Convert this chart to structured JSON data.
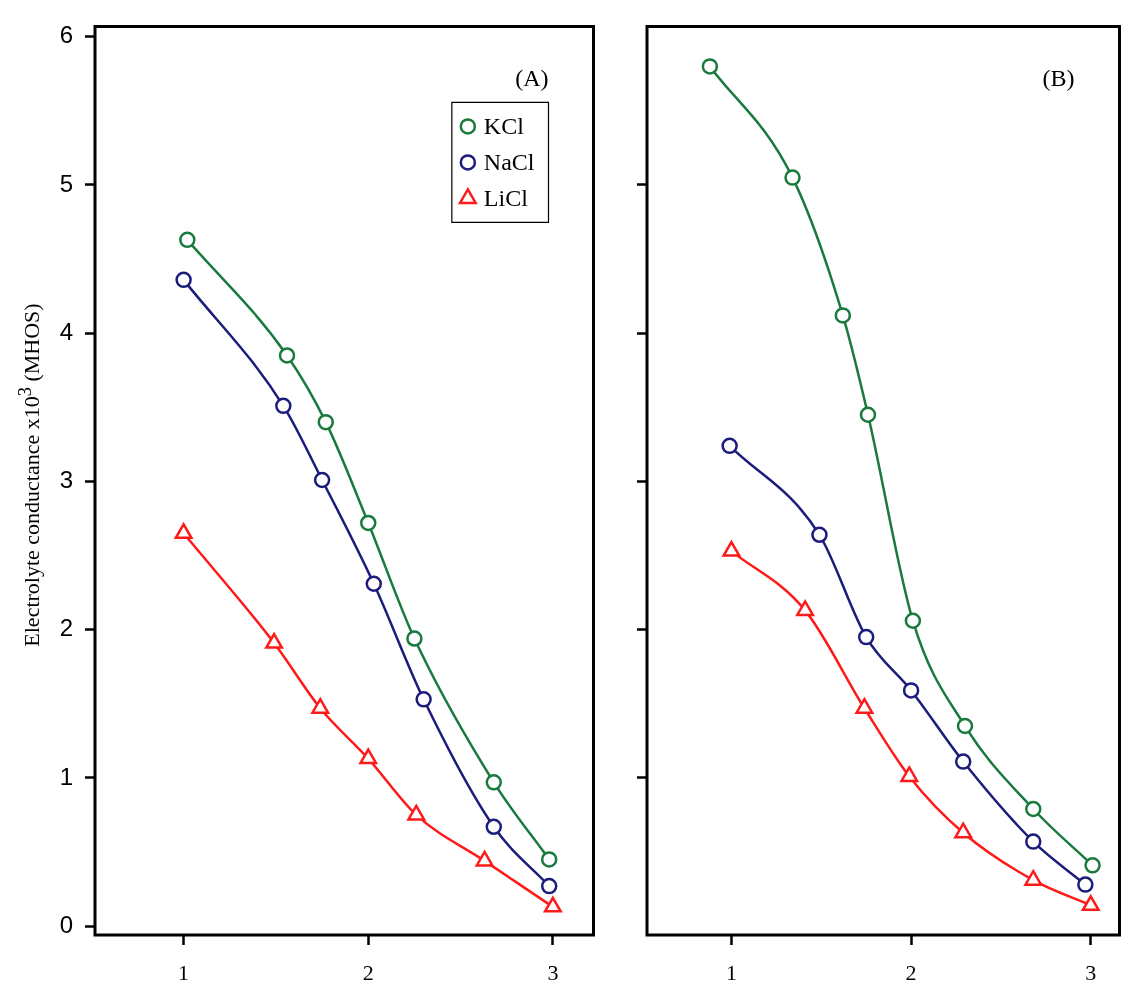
{
  "chart_data": [
    {
      "type": "line",
      "ylabel": "Electrolyte conductance x10$^{3}$ (MHOS)",
      "annotations": [
        "(A)"
      ],
      "legend": "top right",
      "grid": false,
      "xlim": [
        0.52,
        3.22
      ],
      "xticks": [
        1,
        2,
        3
      ],
      "ylim": [
        -0.06,
        6.07
      ],
      "yticks": [
        0,
        1,
        2,
        3,
        4,
        5,
        6
      ],
      "series": [
        {
          "name": "KCl",
          "color": "#1a7a3e",
          "marker": "circle",
          "x": [
            1.02,
            1.56,
            1.77,
            2.0,
            2.25,
            2.68,
            2.98
          ],
          "values": [
            4.63,
            3.85,
            3.4,
            2.72,
            1.94,
            0.97,
            0.45
          ]
        },
        {
          "name": "NaCl",
          "color": "#1c1c7c",
          "marker": "circle",
          "x": [
            1.0,
            1.54,
            1.75,
            2.03,
            2.3,
            2.68,
            2.98
          ],
          "values": [
            4.36,
            3.51,
            3.01,
            2.31,
            1.53,
            0.67,
            0.27
          ]
        },
        {
          "name": "LiCl",
          "color": "#ff1a1a",
          "marker": "triangle",
          "x": [
            1.0,
            1.49,
            1.74,
            2.0,
            2.26,
            2.63,
            3.0
          ],
          "values": [
            2.65,
            1.91,
            1.47,
            1.13,
            0.75,
            0.44,
            0.13
          ]
        }
      ]
    },
    {
      "type": "line",
      "annotations": [
        "(B)"
      ],
      "grid": false,
      "tick_labels": "x",
      "xlim": [
        0.53,
        3.16
      ],
      "xticks": [
        1,
        2,
        3
      ],
      "ylim": [
        -0.06,
        6.07
      ],
      "yticks": [
        1,
        2,
        3,
        4,
        5
      ],
      "series": [
        {
          "color": "#1a7a3e",
          "marker": "circle",
          "x": [
            0.88,
            1.34,
            1.62,
            1.76,
            2.01,
            2.3,
            2.68,
            3.01
          ],
          "values": [
            5.8,
            5.05,
            4.12,
            3.45,
            2.06,
            1.35,
            0.79,
            0.41
          ]
        },
        {
          "color": "#1c1c7c",
          "marker": "circle",
          "x": [
            0.99,
            1.49,
            1.75,
            2.0,
            2.29,
            2.68,
            2.97
          ],
          "values": [
            3.24,
            2.64,
            1.95,
            1.59,
            1.11,
            0.57,
            0.28
          ]
        },
        {
          "color": "#ff1a1a",
          "marker": "triangle",
          "x": [
            1.0,
            1.41,
            1.74,
            1.99,
            2.29,
            2.68,
            3.0
          ],
          "values": [
            2.53,
            2.13,
            1.47,
            1.01,
            0.63,
            0.31,
            0.14
          ]
        }
      ]
    }
  ]
}
